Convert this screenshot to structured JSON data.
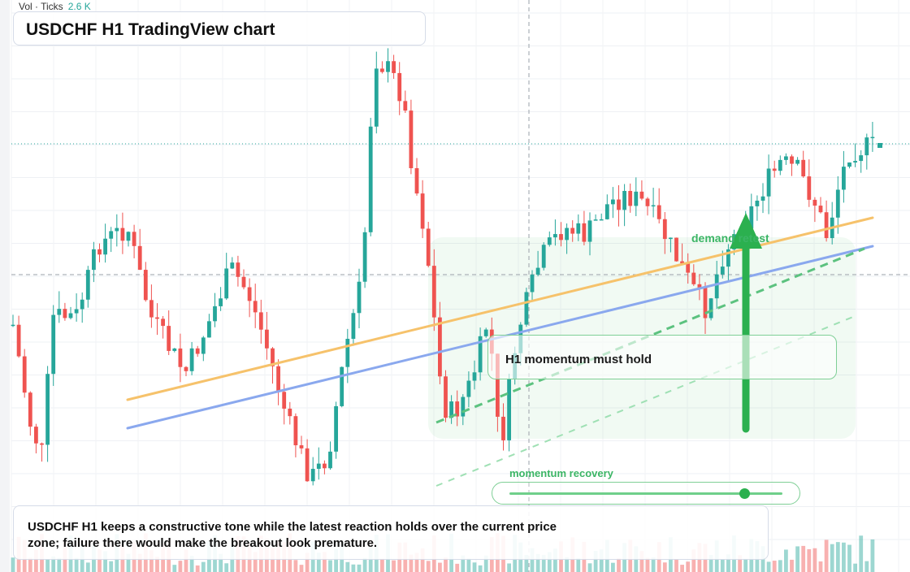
{
  "header": {
    "title": "USDCHF H1 TradingView chart"
  },
  "volume_legend": {
    "label": "Vol · Ticks",
    "value": "2.6 K"
  },
  "annotations": {
    "callout": "H1 momentum must hold",
    "demand_label": "demand retest",
    "slider_label": "momentum recovery",
    "slider_value": 0.86
  },
  "caption": "USDCHF H1 keeps a constructive tone while the latest reaction holds over the current price zone; failure there would make the breakout look premature.",
  "colors": {
    "up": "#26a69a",
    "down": "#ef5350",
    "accent_green": "#2bb04f",
    "trend_orange": "#f6c26b",
    "trend_blue": "#8aa8ee"
  },
  "chart_data": {
    "type": "candlestick",
    "symbol": "USDCHF",
    "timeframe": "H1",
    "n_candles": 150,
    "shape": "range-bound then spike, sharp drop, recovery toward highs",
    "grid": true,
    "annotation_arrow": "up",
    "trendlines": [
      "orange rising support",
      "blue rising support",
      "green dashed channel"
    ],
    "volume": {
      "unit": "Ticks",
      "last": "2.6 K"
    }
  }
}
